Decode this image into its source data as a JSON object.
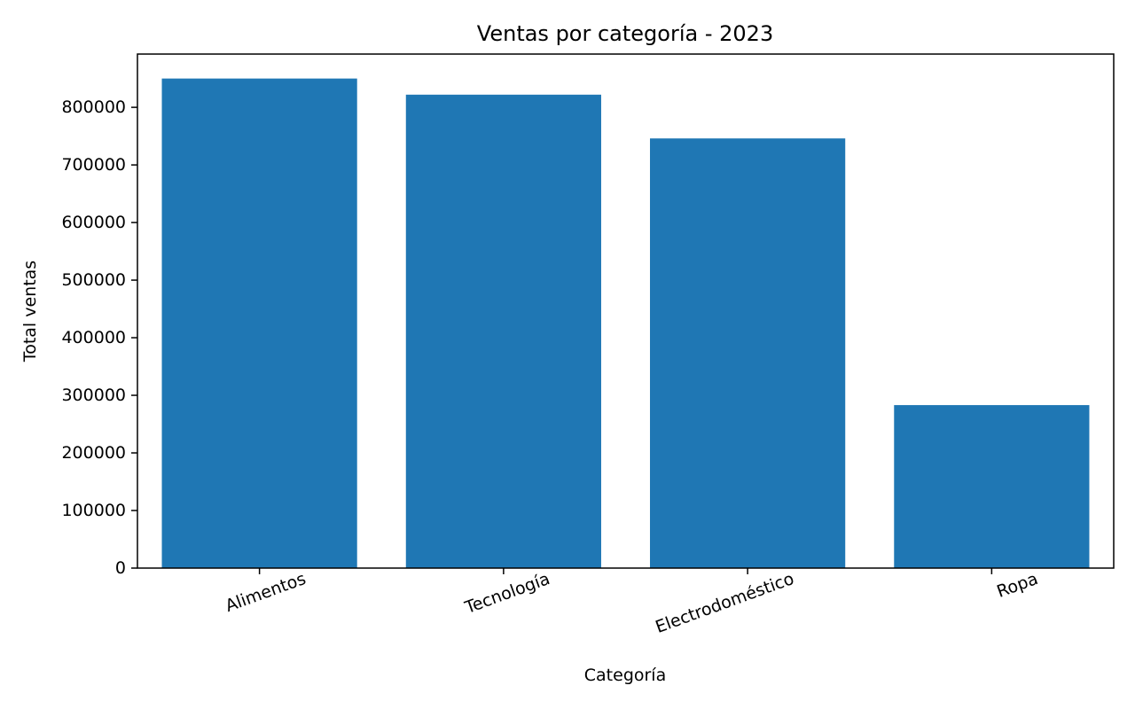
{
  "chart_data": {
    "type": "bar",
    "title": "Ventas por categoría - 2023",
    "xlabel": "Categoría",
    "ylabel": "Total ventas",
    "categories": [
      "Alimentos",
      "Tecnología",
      "Electrodoméstico",
      "Ropa"
    ],
    "values": [
      850000,
      822000,
      746000,
      283000
    ],
    "ylim": [
      0,
      892500
    ],
    "yticks": [
      0,
      100000,
      200000,
      300000,
      400000,
      500000,
      600000,
      700000,
      800000
    ],
    "ytick_labels": [
      "0",
      "100000",
      "200000",
      "300000",
      "400000",
      "500000",
      "600000",
      "700000",
      "800000"
    ],
    "bar_color": "#1f77b4",
    "grid": false,
    "legend": "none"
  }
}
